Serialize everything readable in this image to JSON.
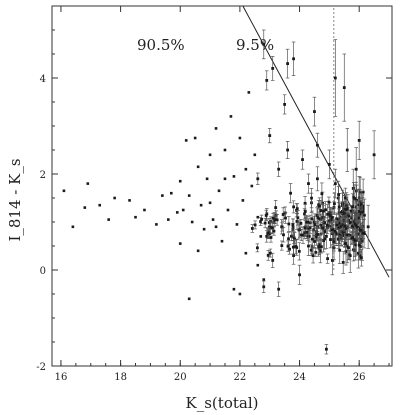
{
  "chart_data": {
    "type": "scatter",
    "xlabel": "K_s(total)",
    "ylabel": "I_814 - K_s",
    "xlim": [
      15.7,
      27.1
    ],
    "ylim": [
      -2.0,
      5.5
    ],
    "xticks": [
      16,
      18,
      20,
      22,
      24,
      26
    ],
    "yticks": [
      -2,
      0,
      2,
      4
    ],
    "ytick_labels": [
      "-2",
      "0",
      "2",
      "4"
    ],
    "grid": false,
    "annotations": [
      "90.5%",
      "9.5%"
    ],
    "divider_line": {
      "x": [
        22.1,
        27.0
      ],
      "y": [
        5.5,
        -0.15
      ]
    },
    "vertical_line": {
      "x": 25.15,
      "y": [
        0.0,
        5.5
      ]
    },
    "bright_points": [
      [
        16.1,
        1.65
      ],
      [
        16.4,
        0.9
      ],
      [
        16.8,
        1.3
      ],
      [
        16.9,
        1.8
      ],
      [
        17.3,
        1.35
      ],
      [
        17.6,
        1.05
      ],
      [
        17.8,
        1.5
      ],
      [
        18.3,
        1.45
      ],
      [
        18.8,
        1.25
      ],
      [
        19.2,
        0.95
      ],
      [
        19.4,
        1.55
      ],
      [
        19.6,
        1.05
      ],
      [
        19.9,
        1.2
      ],
      [
        20.0,
        1.85
      ],
      [
        20.0,
        0.55
      ],
      [
        20.2,
        2.7
      ],
      [
        20.3,
        1.55
      ],
      [
        20.4,
        1.0
      ],
      [
        20.5,
        2.75
      ],
      [
        20.6,
        2.15
      ],
      [
        20.7,
        1.35
      ],
      [
        20.8,
        0.85
      ],
      [
        20.9,
        1.9
      ],
      [
        21.0,
        2.4
      ],
      [
        21.1,
        1.05
      ],
      [
        21.2,
        2.95
      ],
      [
        21.3,
        1.65
      ],
      [
        21.4,
        0.6
      ],
      [
        21.5,
        2.5
      ],
      [
        21.6,
        1.25
      ],
      [
        21.7,
        3.2
      ],
      [
        21.8,
        1.95
      ],
      [
        21.9,
        0.95
      ],
      [
        22.0,
        2.75
      ],
      [
        22.1,
        1.45
      ],
      [
        22.2,
        0.35
      ],
      [
        22.3,
        3.7
      ],
      [
        22.4,
        1.75
      ],
      [
        22.5,
        2.4
      ],
      [
        22.6,
        1.1
      ],
      [
        22.7,
        0.7
      ],
      [
        20.3,
        -0.6
      ],
      [
        21.8,
        -0.4
      ],
      [
        22.0,
        -0.5
      ],
      [
        20.1,
        1.25
      ],
      [
        19.7,
        1.6
      ],
      [
        18.5,
        1.1
      ],
      [
        21.0,
        1.4
      ],
      [
        21.5,
        1.9
      ],
      [
        22.2,
        2.1
      ],
      [
        20.6,
        0.4
      ],
      [
        21.2,
        0.9
      ],
      [
        22.6,
        0.1
      ],
      [
        22.8,
        -0.2
      ]
    ],
    "errorbar_points": [
      {
        "x": 22.8,
        "y": 4.7,
        "e": 0.3
      },
      {
        "x": 22.9,
        "y": 3.95,
        "e": 0.2
      },
      {
        "x": 23.1,
        "y": 4.2,
        "e": 0.25
      },
      {
        "x": 23.5,
        "y": 3.45,
        "e": 0.2
      },
      {
        "x": 23.6,
        "y": 4.3,
        "e": 0.3
      },
      {
        "x": 23.8,
        "y": 4.4,
        "e": 0.35
      },
      {
        "x": 24.5,
        "y": 3.3,
        "e": 0.3
      },
      {
        "x": 25.2,
        "y": 4.0,
        "e": 0.8
      },
      {
        "x": 25.5,
        "y": 3.8,
        "e": 0.7
      },
      {
        "x": 26.0,
        "y": 2.7,
        "e": 0.4
      },
      {
        "x": 26.5,
        "y": 2.4,
        "e": 0.5
      },
      {
        "x": 24.9,
        "y": -1.65,
        "e": 0.1
      },
      {
        "x": 23.0,
        "y": 2.8,
        "e": 0.15
      },
      {
        "x": 23.3,
        "y": 2.1,
        "e": 0.15
      },
      {
        "x": 23.7,
        "y": 1.6,
        "e": 0.2
      },
      {
        "x": 24.1,
        "y": 2.3,
        "e": 0.2
      },
      {
        "x": 24.3,
        "y": 0.5,
        "e": 0.2
      },
      {
        "x": 24.6,
        "y": 1.9,
        "e": 0.25
      },
      {
        "x": 24.8,
        "y": 1.1,
        "e": 0.25
      },
      {
        "x": 25.0,
        "y": 2.2,
        "e": 0.3
      },
      {
        "x": 25.1,
        "y": 0.2,
        "e": 0.3
      },
      {
        "x": 25.3,
        "y": 1.5,
        "e": 0.35
      },
      {
        "x": 25.4,
        "y": 0.8,
        "e": 0.3
      },
      {
        "x": 25.6,
        "y": 2.5,
        "e": 0.45
      },
      {
        "x": 25.7,
        "y": 0.3,
        "e": 0.35
      },
      {
        "x": 25.8,
        "y": 1.7,
        "e": 0.4
      },
      {
        "x": 25.9,
        "y": 1.0,
        "e": 0.4
      },
      {
        "x": 26.1,
        "y": 0.6,
        "e": 0.4
      },
      {
        "x": 24.0,
        "y": -0.1,
        "e": 0.2
      },
      {
        "x": 23.4,
        "y": 0.9,
        "e": 0.15
      },
      {
        "x": 23.2,
        "y": 1.3,
        "e": 0.15
      },
      {
        "x": 22.9,
        "y": 0.7,
        "e": 0.12
      },
      {
        "x": 24.4,
        "y": 1.4,
        "e": 0.2
      },
      {
        "x": 24.7,
        "y": 0.4,
        "e": 0.25
      },
      {
        "x": 25.5,
        "y": 1.2,
        "e": 0.35
      },
      {
        "x": 26.0,
        "y": 1.5,
        "e": 0.45
      },
      {
        "x": 26.3,
        "y": 0.9,
        "e": 0.45
      },
      {
        "x": 23.8,
        "y": 0.3,
        "e": 0.18
      },
      {
        "x": 24.2,
        "y": 0.9,
        "e": 0.2
      },
      {
        "x": 24.9,
        "y": 0.7,
        "e": 0.25
      },
      {
        "x": 25.2,
        "y": 1.8,
        "e": 0.3
      },
      {
        "x": 25.6,
        "y": 0.5,
        "e": 0.35
      },
      {
        "x": 23.6,
        "y": 2.5,
        "e": 0.18
      },
      {
        "x": 22.6,
        "y": 1.9,
        "e": 0.12
      },
      {
        "x": 23.1,
        "y": 0.2,
        "e": 0.15
      },
      {
        "x": 22.8,
        "y": -0.35,
        "e": 0.12
      },
      {
        "x": 23.3,
        "y": -0.4,
        "e": 0.15
      },
      {
        "x": 25.9,
        "y": 2.1,
        "e": 0.45
      },
      {
        "x": 24.6,
        "y": 2.6,
        "e": 0.25
      },
      {
        "x": 24.3,
        "y": 1.8,
        "e": 0.2
      }
    ],
    "dense_cluster": {
      "x_range": [
        22.4,
        26.2
      ],
      "y_center": 0.9,
      "y_spread": 0.65,
      "n": 260,
      "seed": 7
    }
  }
}
